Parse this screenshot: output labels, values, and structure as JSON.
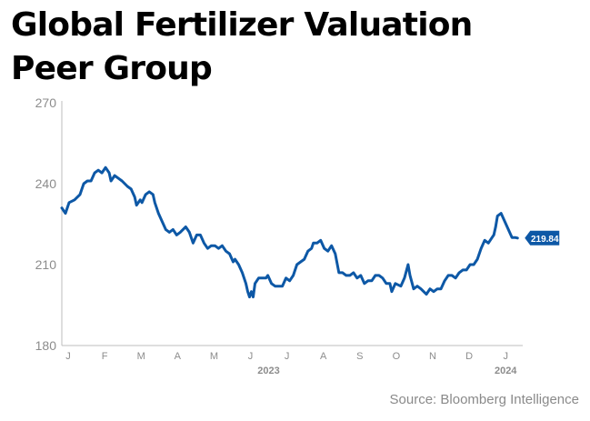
{
  "title_lines": [
    "Global Fertilizer Valuation",
    "Peer Group"
  ],
  "source": "Source: Bloomberg Intelligence",
  "chart_data": {
    "type": "line",
    "title": "Global Fertilizer Valuation Peer Group",
    "xlabel": "",
    "ylabel": "",
    "ylim": [
      180,
      270
    ],
    "yticks": [
      180,
      210,
      240,
      270
    ],
    "x_month_labels": [
      "J",
      "F",
      "M",
      "A",
      "M",
      "J",
      "J",
      "A",
      "S",
      "O",
      "N",
      "D",
      "J"
    ],
    "year_labels": [
      {
        "label": "2023",
        "month_index": 5.5
      },
      {
        "label": "2024",
        "month_index": 12
      }
    ],
    "grid": false,
    "line_color": "#0d58a6",
    "last_value_label": "219.84",
    "series": [
      {
        "points": [
          [
            0.0,
            231
          ],
          [
            0.1,
            229
          ],
          [
            0.2,
            233
          ],
          [
            0.35,
            234
          ],
          [
            0.5,
            236
          ],
          [
            0.6,
            240
          ],
          [
            0.7,
            241
          ],
          [
            0.8,
            241
          ],
          [
            0.9,
            244
          ],
          [
            1.0,
            245
          ],
          [
            1.1,
            244
          ],
          [
            1.2,
            246
          ],
          [
            1.3,
            244
          ],
          [
            1.35,
            241
          ],
          [
            1.45,
            243
          ],
          [
            1.55,
            242
          ],
          [
            1.65,
            241
          ],
          [
            1.8,
            239
          ],
          [
            1.9,
            238
          ],
          [
            2.0,
            235
          ],
          [
            2.05,
            232
          ],
          [
            2.15,
            234
          ],
          [
            2.2,
            233
          ],
          [
            2.3,
            236
          ],
          [
            2.4,
            237
          ],
          [
            2.5,
            236
          ],
          [
            2.55,
            233
          ],
          [
            2.65,
            229
          ],
          [
            2.75,
            226
          ],
          [
            2.85,
            223
          ],
          [
            2.95,
            222
          ],
          [
            3.05,
            223
          ],
          [
            3.15,
            221
          ],
          [
            3.25,
            222
          ],
          [
            3.4,
            224
          ],
          [
            3.5,
            222
          ],
          [
            3.6,
            218
          ],
          [
            3.7,
            221
          ],
          [
            3.8,
            221
          ],
          [
            3.9,
            218
          ],
          [
            4.0,
            216
          ],
          [
            4.1,
            217
          ],
          [
            4.2,
            217
          ],
          [
            4.3,
            216
          ],
          [
            4.4,
            217
          ],
          [
            4.5,
            215
          ],
          [
            4.6,
            214
          ],
          [
            4.7,
            211
          ],
          [
            4.75,
            212
          ],
          [
            4.85,
            210
          ],
          [
            4.95,
            207
          ],
          [
            5.05,
            203
          ],
          [
            5.1,
            200
          ],
          [
            5.15,
            198
          ],
          [
            5.2,
            200
          ],
          [
            5.25,
            198
          ],
          [
            5.3,
            203
          ],
          [
            5.4,
            205
          ],
          [
            5.5,
            205
          ],
          [
            5.6,
            205
          ],
          [
            5.65,
            206
          ],
          [
            5.75,
            203
          ],
          [
            5.85,
            202
          ],
          [
            5.95,
            202
          ],
          [
            6.05,
            202
          ],
          [
            6.15,
            205
          ],
          [
            6.25,
            204
          ],
          [
            6.35,
            206
          ],
          [
            6.45,
            210
          ],
          [
            6.55,
            211
          ],
          [
            6.65,
            212
          ],
          [
            6.75,
            215
          ],
          [
            6.85,
            216
          ],
          [
            6.9,
            218
          ],
          [
            7.0,
            218
          ],
          [
            7.1,
            219
          ],
          [
            7.2,
            216
          ],
          [
            7.3,
            215
          ],
          [
            7.4,
            217
          ],
          [
            7.5,
            214
          ],
          [
            7.6,
            207
          ],
          [
            7.7,
            207
          ],
          [
            7.8,
            206
          ],
          [
            7.9,
            206
          ],
          [
            8.0,
            207
          ],
          [
            8.1,
            205
          ],
          [
            8.2,
            206
          ],
          [
            8.3,
            203
          ],
          [
            8.4,
            204
          ],
          [
            8.5,
            204
          ],
          [
            8.6,
            206
          ],
          [
            8.7,
            206
          ],
          [
            8.8,
            205
          ],
          [
            8.9,
            203
          ],
          [
            9.0,
            203
          ],
          [
            9.05,
            200
          ],
          [
            9.15,
            203
          ],
          [
            9.3,
            202
          ],
          [
            9.4,
            205
          ],
          [
            9.5,
            210
          ],
          [
            9.55,
            206
          ],
          [
            9.65,
            201
          ],
          [
            9.75,
            202
          ],
          [
            9.85,
            201
          ],
          [
            10.0,
            199
          ],
          [
            10.1,
            201
          ],
          [
            10.2,
            200
          ],
          [
            10.3,
            201
          ],
          [
            10.4,
            201
          ],
          [
            10.5,
            204
          ],
          [
            10.6,
            206
          ],
          [
            10.7,
            206
          ],
          [
            10.8,
            205
          ],
          [
            10.9,
            207
          ],
          [
            11.0,
            208
          ],
          [
            11.1,
            208
          ],
          [
            11.2,
            210
          ],
          [
            11.3,
            210
          ],
          [
            11.4,
            212
          ],
          [
            11.5,
            216
          ],
          [
            11.6,
            219
          ],
          [
            11.7,
            218
          ],
          [
            11.8,
            220
          ],
          [
            11.85,
            221
          ],
          [
            11.9,
            224
          ],
          [
            11.95,
            228
          ],
          [
            12.05,
            229
          ],
          [
            12.15,
            226
          ],
          [
            12.25,
            223
          ],
          [
            12.35,
            220
          ],
          [
            12.45,
            220
          ],
          [
            12.5,
            219.84
          ]
        ]
      }
    ]
  }
}
